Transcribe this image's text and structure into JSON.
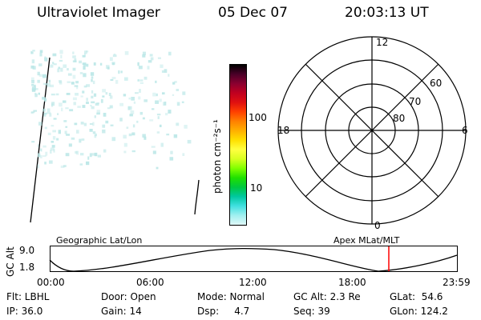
{
  "header": {
    "instrument": "Ultraviolet Imager",
    "date": "05 Dec 07",
    "time": "20:03:13 UT"
  },
  "colorbar": {
    "unit_label": "photon cm⁻²s⁻¹",
    "tick_labels": [
      "100",
      "10"
    ],
    "colors": [
      "#000000",
      "#4a0028",
      "#8b0030",
      "#c00020",
      "#e01010",
      "#ff4000",
      "#ff8000",
      "#ffb000",
      "#ffe000",
      "#ffff40",
      "#d8ff20",
      "#80ff00",
      "#20e000",
      "#00c840",
      "#00c8a0",
      "#40e0e0",
      "#a0f0f0",
      "#e0f8f8"
    ]
  },
  "polar_plot": {
    "top_label": "12",
    "bottom_label": "0",
    "left_label": "18",
    "right_label": "6",
    "ring_labels": [
      "60",
      "70",
      "80"
    ]
  },
  "timeline": {
    "ylabel": "GC Alt",
    "left_caption": "Geographic Lat/Lon",
    "right_caption": "Apex  MLat/MLT",
    "y_ticks": [
      "9.0",
      "1.8"
    ],
    "x_ticks": [
      "00:00",
      "06:00",
      "12:00",
      "18:00",
      "23:59"
    ],
    "current_marker_color": "#ff0000"
  },
  "info": {
    "row1": {
      "filter": "Flt: LBHL",
      "door": "Door: Open",
      "mode": "Mode: Normal",
      "gc_alt": "GC Alt: 2.3 Re",
      "glat": "GLat:  54.6"
    },
    "row2": {
      "ip": "IP: 36.0",
      "gain": "Gain: 14",
      "dsp": "Dsp:     4.7",
      "seq": "Seq: 39",
      "glon": "GLon: 124.2"
    }
  },
  "colors": {
    "aurora_speckle": "#b8e6e6",
    "foreground": "#000000"
  }
}
